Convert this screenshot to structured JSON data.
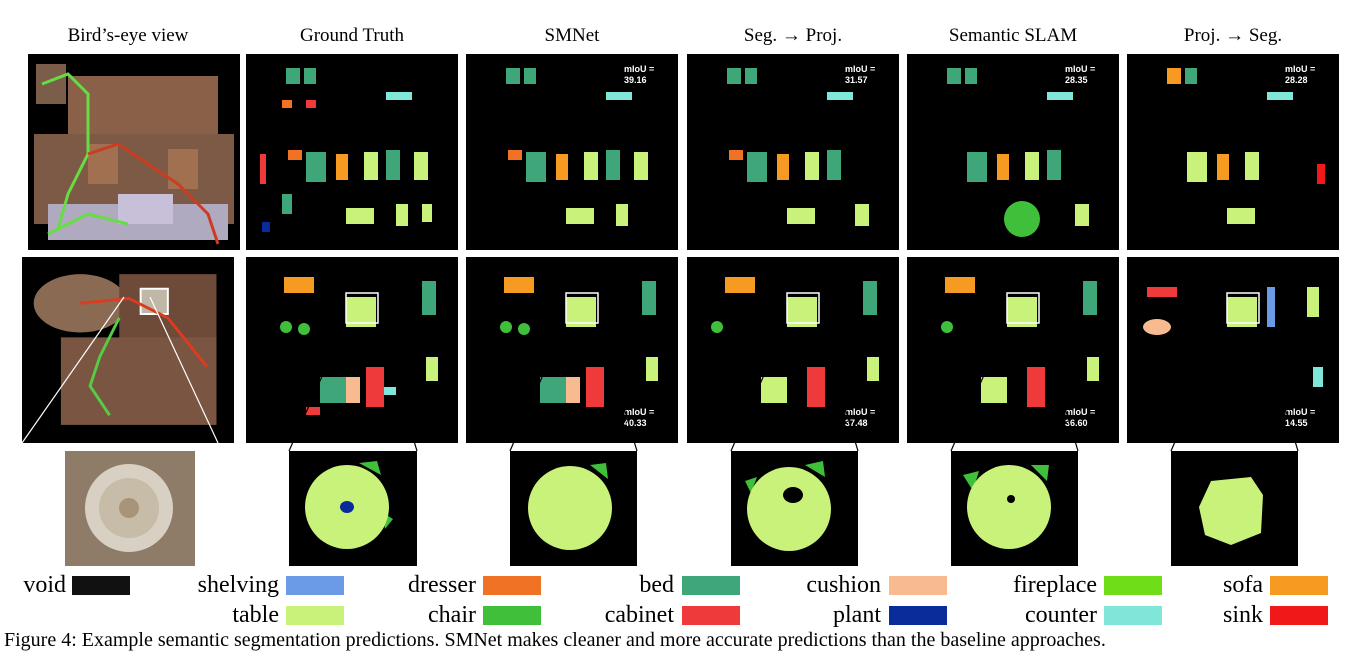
{
  "columns": [
    {
      "title": "Bird’s-eye view"
    },
    {
      "title": "Ground Truth"
    },
    {
      "title": "SMNet",
      "miou_row1": "39.16",
      "miou_row2": "40.33"
    },
    {
      "title": "Seg. → Proj.",
      "miou_row1": "31.57",
      "miou_row2": "37.48"
    },
    {
      "title": "Semantic SLAM",
      "miou_row1": "28.35",
      "miou_row2": "36.60"
    },
    {
      "title": "Proj. → Seg.",
      "miou_row1": "28.28",
      "miou_row2": "14.55"
    }
  ],
  "miou_label": "mIoU =",
  "legend": [
    {
      "label": "void",
      "color": "#111111"
    },
    {
      "label": "shelving",
      "color": "#6b9ae6"
    },
    {
      "label": "dresser",
      "color": "#f07225"
    },
    {
      "label": "bed",
      "color": "#3fa67a"
    },
    {
      "label": "cushion",
      "color": "#f7bb8f"
    },
    {
      "label": "fireplace",
      "color": "#6fdd18"
    },
    {
      "label": "sofa",
      "color": "#f79a22"
    },
    {
      "label": "table",
      "color": "#c9f27a"
    },
    {
      "label": "chair",
      "color": "#3fbf3a"
    },
    {
      "label": "cabinet",
      "color": "#ee3a3a"
    },
    {
      "label": "plant",
      "color": "#0a2b9a"
    },
    {
      "label": "counter",
      "color": "#7fe6d9"
    },
    {
      "label": "sink",
      "color": "#f01818"
    }
  ],
  "caption": "Figure 4: Example semantic segmentation predictions. SMNet makes cleaner and more accurate predictions than the baseline approaches."
}
